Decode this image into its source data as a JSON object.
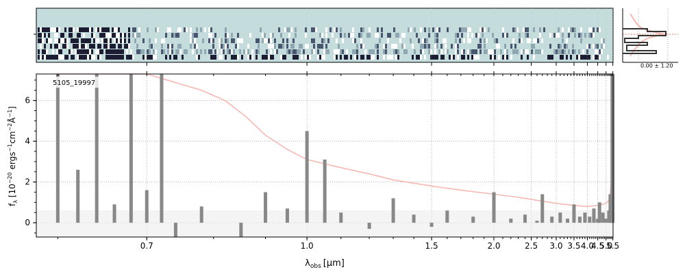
{
  "chart_data": [
    {
      "type": "heatmap",
      "description_of_panel": "2D spectrum cutout",
      "colors": {
        "sky": "#c5dcdc",
        "dark": "#1c1d33",
        "mid": "#7a8fa0"
      }
    },
    {
      "type": "line",
      "object_label": "5105_19997",
      "xlabel_main": "λ",
      "xlabel_sub": "obs",
      "xlabel_unit": "[μm]",
      "ylabel": "f_λ [10^-20 ergs^-1cm^-2Å^-1]",
      "ylabel_parts": {
        "pre": "f",
        "sub": "λ",
        "unit_open": " [10",
        "exp1": "−20",
        "unit_mid": " ergs",
        "exp2": "−1",
        "unit_mid2": "cm",
        "exp3": "−2",
        "unit_mid3": "Å",
        "exp4": "−1",
        "unit_close": "]"
      },
      "x_scale": "reciprocal",
      "xlim": [
        0.58,
        5.52
      ],
      "ylim": [
        -0.7,
        7.3
      ],
      "x_ticks": [
        {
          "value": 0.7,
          "label": "0.7"
        },
        {
          "value": 1.0,
          "label": "1.0"
        },
        {
          "value": 1.5,
          "label": "1.5"
        },
        {
          "value": 2.0,
          "label": "2.0"
        },
        {
          "value": 2.5,
          "label": "2.5"
        },
        {
          "value": 3.0,
          "label": "3.0"
        },
        {
          "value": 3.5,
          "label": "3.5"
        },
        {
          "value": 4.0,
          "label": "4.0"
        },
        {
          "value": 4.5,
          "label": "4.5"
        },
        {
          "value": 5.0,
          "label": "5.0"
        },
        {
          "value": 5.5,
          "label": "5.5"
        }
      ],
      "y_ticks": [
        {
          "value": 0,
          "label": "0"
        },
        {
          "value": 2,
          "label": "2"
        },
        {
          "value": 4,
          "label": "4"
        },
        {
          "value": 6,
          "label": "6"
        }
      ],
      "grid": true,
      "series": [
        {
          "role": "flux",
          "color": "#888888",
          "points": [
            [
              0.6,
              7.3
            ],
            [
              0.62,
              2.6
            ],
            [
              0.64,
              7.3
            ],
            [
              0.66,
              0.9
            ],
            [
              0.68,
              7.3
            ],
            [
              0.7,
              1.6
            ],
            [
              0.72,
              7.3
            ],
            [
              0.74,
              -0.7
            ],
            [
              0.78,
              0.8
            ],
            [
              0.85,
              -0.7
            ],
            [
              0.9,
              1.5
            ],
            [
              0.95,
              0.7
            ],
            [
              1.0,
              4.5
            ],
            [
              1.05,
              3.1
            ],
            [
              1.1,
              0.5
            ],
            [
              1.2,
              -0.3
            ],
            [
              1.3,
              1.2
            ],
            [
              1.4,
              0.4
            ],
            [
              1.5,
              -0.2
            ],
            [
              1.6,
              0.6
            ],
            [
              1.8,
              0.3
            ],
            [
              2.0,
              1.5
            ],
            [
              2.2,
              0.2
            ],
            [
              2.4,
              0.4
            ],
            [
              2.6,
              0.1
            ],
            [
              2.7,
              1.4
            ],
            [
              2.9,
              0.3
            ],
            [
              3.1,
              0.5
            ],
            [
              3.3,
              0.2
            ],
            [
              3.5,
              0.9
            ],
            [
              3.7,
              0.3
            ],
            [
              3.9,
              0.5
            ],
            [
              4.1,
              0.3
            ],
            [
              4.3,
              0.7
            ],
            [
              4.5,
              0.2
            ],
            [
              4.6,
              1.0
            ],
            [
              4.8,
              0.5
            ],
            [
              5.0,
              0.2
            ],
            [
              5.2,
              0.6
            ],
            [
              5.3,
              1.4
            ],
            [
              5.4,
              1.3
            ],
            [
              5.45,
              7.3
            ],
            [
              5.48,
              5.0
            ],
            [
              5.5,
              7.3
            ]
          ]
        },
        {
          "role": "uncertainty",
          "color": "#f7b8b2",
          "points": [
            [
              0.6,
              7.3
            ],
            [
              0.7,
              7.3
            ],
            [
              0.78,
              6.5
            ],
            [
              0.82,
              6.0
            ],
            [
              0.86,
              5.2
            ],
            [
              0.9,
              4.3
            ],
            [
              0.95,
              3.6
            ],
            [
              1.0,
              3.1
            ],
            [
              1.1,
              2.7
            ],
            [
              1.2,
              2.4
            ],
            [
              1.3,
              2.1
            ],
            [
              1.5,
              1.8
            ],
            [
              1.7,
              1.6
            ],
            [
              2.0,
              1.4
            ],
            [
              2.3,
              1.25
            ],
            [
              2.6,
              1.1
            ],
            [
              3.0,
              0.95
            ],
            [
              3.5,
              0.85
            ],
            [
              4.0,
              0.8
            ],
            [
              4.5,
              0.85
            ],
            [
              5.0,
              0.95
            ],
            [
              5.2,
              1.1
            ],
            [
              5.3,
              1.4
            ],
            [
              5.4,
              2.2
            ],
            [
              5.45,
              3.8
            ],
            [
              5.48,
              5.5
            ],
            [
              5.5,
              7.3
            ]
          ]
        }
      ]
    },
    {
      "type": "line",
      "description_of_panel": "spatial profile",
      "annotation": "0.00 ± 1.20",
      "series": [
        {
          "role": "profile",
          "color": "#333333"
        },
        {
          "role": "model",
          "color": "#f7b8b2"
        },
        {
          "role": "center",
          "color": "#e8735a"
        }
      ]
    }
  ]
}
